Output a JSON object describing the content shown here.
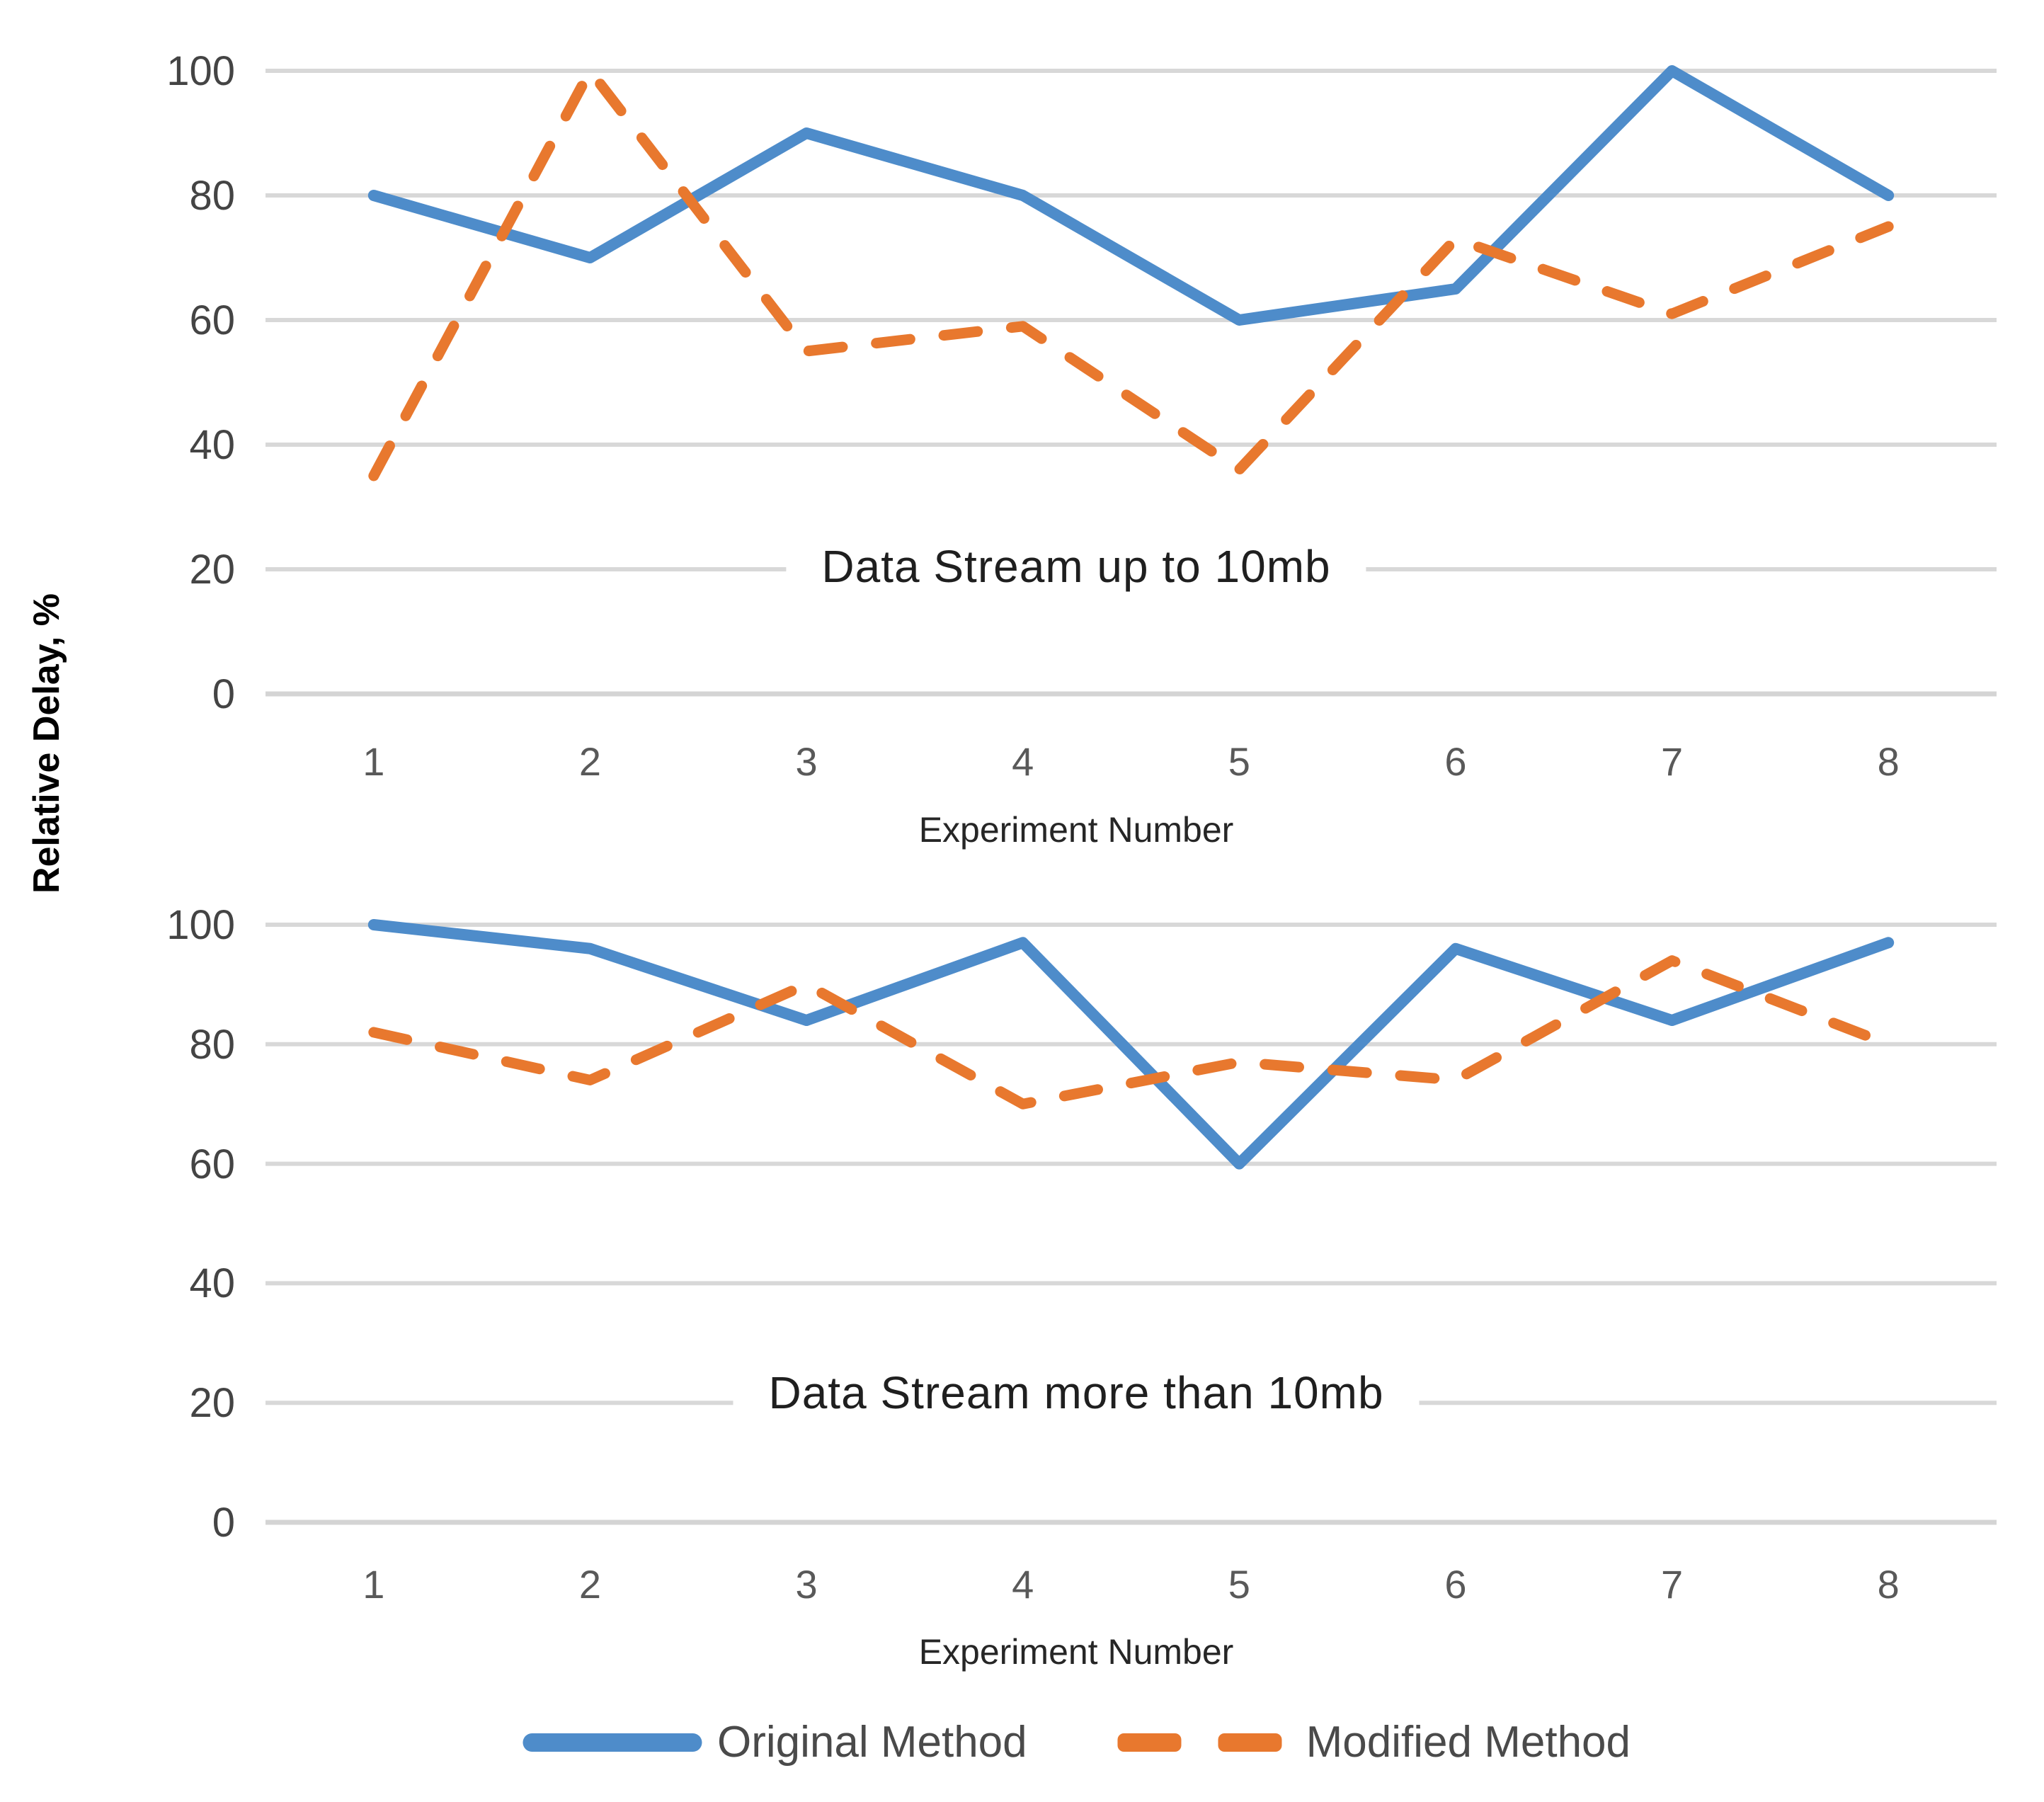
{
  "figure": {
    "y_axis_label": "Relative Delay, %",
    "x_axis_label": "Experiment Number",
    "colors": {
      "original_series": "#4E8CCA",
      "modified_series": "#E8782E",
      "gridline": "#D8D8D8",
      "axis_line": "#D4D4D4",
      "y_tick_text": "#444444",
      "x_tick_text": "#595959",
      "title_text": "#1F1F1F",
      "legend_text": "#4A4A4A"
    },
    "legend": {
      "items": [
        {
          "label": "Original Method",
          "swatch": "solid-line",
          "color_key": "original_series"
        },
        {
          "label": "Modified Method",
          "swatch": "dashed-line",
          "color_key": "modified_series"
        }
      ]
    }
  },
  "chart_data": [
    {
      "type": "line",
      "title": "Data Stream up to 10mb",
      "xlabel": "Experiment Number",
      "ylabel": "Relative Delay, %",
      "categories": [
        1,
        2,
        3,
        4,
        5,
        6,
        7,
        8
      ],
      "yticks": [
        0,
        20,
        40,
        60,
        80,
        100
      ],
      "ylim": [
        0,
        100
      ],
      "grid": true,
      "legend_position": "bottom-shared",
      "series": [
        {
          "name": "Original Method",
          "style": "solid",
          "values": [
            80,
            70,
            90,
            80,
            60,
            65,
            100,
            80
          ]
        },
        {
          "name": "Modified Method",
          "style": "dashed",
          "values": [
            35,
            100,
            55,
            59,
            36,
            73,
            61,
            75
          ]
        }
      ]
    },
    {
      "type": "line",
      "title": "Data Stream more than 10mb",
      "xlabel": "Experiment Number",
      "ylabel": "Relative Delay, %",
      "categories": [
        1,
        2,
        3,
        4,
        5,
        6,
        7,
        8
      ],
      "yticks": [
        0,
        20,
        40,
        60,
        80,
        100
      ],
      "ylim": [
        0,
        100
      ],
      "grid": true,
      "legend_position": "bottom-shared",
      "series": [
        {
          "name": "Original Method",
          "style": "solid",
          "values": [
            100,
            96,
            84,
            97,
            60,
            96,
            84,
            97
          ]
        },
        {
          "name": "Modified Method",
          "style": "dashed",
          "values": [
            82,
            74,
            90,
            70,
            77,
            74,
            94,
            80
          ]
        }
      ]
    }
  ]
}
